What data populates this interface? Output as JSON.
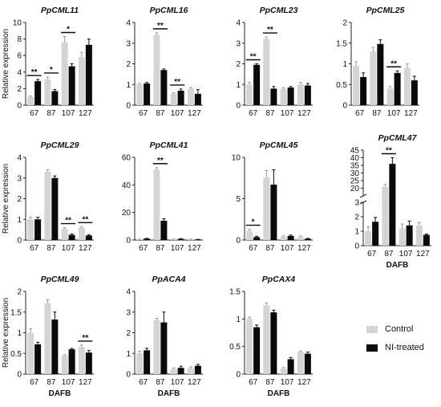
{
  "colors": {
    "control": "#d4d4d4",
    "treated": "#0a0a0a",
    "axis": "#222222",
    "text": "#111111"
  },
  "legend": {
    "control_label": "Control",
    "treated_label": "NI-treated"
  },
  "chart_data": [
    {
      "type": "bar",
      "title": "PpCML11",
      "ylabel": "Relative expression",
      "xlabel": "",
      "categories": [
        "67",
        "87",
        "107",
        "127"
      ],
      "ylim": [
        0,
        10
      ],
      "yticks": [
        0,
        2,
        4,
        6,
        8,
        10
      ],
      "series": [
        {
          "name": "Control",
          "values": [
            1.0,
            3.1,
            7.6,
            5.8
          ],
          "errors": [
            0.1,
            0.3,
            0.7,
            0.6
          ]
        },
        {
          "name": "NI-treated",
          "values": [
            2.9,
            1.7,
            4.7,
            7.3
          ],
          "errors": [
            0.2,
            0.2,
            0.3,
            0.7
          ]
        }
      ],
      "significance": [
        {
          "index": 0,
          "label": "**"
        },
        {
          "index": 1,
          "label": "*"
        },
        {
          "index": 2,
          "label": "*"
        }
      ]
    },
    {
      "type": "bar",
      "title": "PpCML16",
      "ylabel": "",
      "xlabel": "",
      "categories": [
        "67",
        "87",
        "107",
        "127"
      ],
      "ylim": [
        0,
        4
      ],
      "yticks": [
        0,
        1,
        2,
        3,
        4
      ],
      "series": [
        {
          "name": "Control",
          "values": [
            1.0,
            3.4,
            0.55,
            0.8
          ],
          "errors": [
            0.05,
            0.1,
            0.05,
            0.05
          ]
        },
        {
          "name": "NI-treated",
          "values": [
            1.05,
            1.7,
            0.7,
            0.55
          ],
          "errors": [
            0.05,
            0.05,
            0.08,
            0.2
          ]
        }
      ],
      "significance": [
        {
          "index": 1,
          "label": "**"
        },
        {
          "index": 2,
          "label": "**"
        }
      ]
    },
    {
      "type": "bar",
      "title": "PpCML23",
      "ylabel": "",
      "xlabel": "",
      "categories": [
        "67",
        "87",
        "107",
        "127"
      ],
      "ylim": [
        0,
        4
      ],
      "yticks": [
        0,
        1,
        2,
        3,
        4
      ],
      "series": [
        {
          "name": "Control",
          "values": [
            1.0,
            3.2,
            0.8,
            1.0
          ],
          "errors": [
            0.1,
            0.1,
            0.05,
            0.1
          ]
        },
        {
          "name": "NI-treated",
          "values": [
            1.95,
            0.8,
            0.85,
            0.95
          ],
          "errors": [
            0.05,
            0.1,
            0.05,
            0.1
          ]
        }
      ],
      "significance": [
        {
          "index": 0,
          "label": "**"
        },
        {
          "index": 1,
          "label": "**"
        }
      ]
    },
    {
      "type": "bar",
      "title": "PpCML25",
      "ylabel": "",
      "xlabel": "",
      "categories": [
        "67",
        "87",
        "107",
        "127"
      ],
      "ylim": [
        0,
        2.0
      ],
      "yticks": [
        0,
        0.5,
        1.0,
        1.5,
        2.0
      ],
      "series": [
        {
          "name": "Control",
          "values": [
            0.95,
            1.3,
            0.4,
            0.9
          ],
          "errors": [
            0.1,
            0.1,
            0.05,
            0.1
          ]
        },
        {
          "name": "NI-treated",
          "values": [
            0.68,
            1.48,
            0.78,
            0.6
          ],
          "errors": [
            0.1,
            0.1,
            0.05,
            0.1
          ]
        }
      ],
      "significance": [
        {
          "index": 2,
          "label": "**"
        }
      ]
    },
    {
      "type": "bar",
      "title": "PpCML29",
      "ylabel": "Relative expression",
      "xlabel": "",
      "categories": [
        "67",
        "87",
        "107",
        "127"
      ],
      "ylim": [
        0,
        4
      ],
      "yticks": [
        0,
        1,
        2,
        3,
        4
      ],
      "series": [
        {
          "name": "Control",
          "values": [
            1.0,
            3.3,
            0.55,
            0.6
          ],
          "errors": [
            0.1,
            0.1,
            0.05,
            0.05
          ]
        },
        {
          "name": "NI-treated",
          "values": [
            1.0,
            3.0,
            0.25,
            0.22
          ],
          "errors": [
            0.1,
            0.1,
            0.05,
            0.03
          ]
        }
      ],
      "significance": [
        {
          "index": 2,
          "label": "**"
        },
        {
          "index": 3,
          "label": "**"
        }
      ]
    },
    {
      "type": "bar",
      "title": "PpCML41",
      "ylabel": "",
      "xlabel": "",
      "categories": [
        "67",
        "87",
        "107",
        "127"
      ],
      "ylim": [
        0,
        60
      ],
      "yticks": [
        0,
        20,
        40,
        60
      ],
      "series": [
        {
          "name": "Control",
          "values": [
            0.5,
            51,
            0.5,
            0.5
          ],
          "errors": [
            0.2,
            1.5,
            0.2,
            0.2
          ]
        },
        {
          "name": "NI-treated",
          "values": [
            1.0,
            14,
            0.8,
            0.4
          ],
          "errors": [
            0.2,
            1.5,
            0.2,
            0.1
          ]
        }
      ],
      "significance": [
        {
          "index": 1,
          "label": "**"
        }
      ]
    },
    {
      "type": "bar",
      "title": "PpCML45",
      "ylabel": "",
      "xlabel": "",
      "categories": [
        "67",
        "87",
        "107",
        "127"
      ],
      "ylim": [
        0,
        10
      ],
      "yticks": [
        0,
        5,
        10
      ],
      "series": [
        {
          "name": "Control",
          "values": [
            1.1,
            7.6,
            0.4,
            0.4
          ],
          "errors": [
            0.2,
            0.8,
            0.1,
            0.1
          ]
        },
        {
          "name": "NI-treated",
          "values": [
            0.35,
            6.7,
            0.5,
            0.15
          ],
          "errors": [
            0.1,
            1.8,
            0.1,
            0.05
          ]
        }
      ],
      "significance": [
        {
          "index": 0,
          "label": "*"
        }
      ]
    },
    {
      "type": "bar",
      "title": "PpCML47",
      "ylabel": "",
      "xlabel": "DAFB",
      "categories": [
        "67",
        "87",
        "107",
        "127"
      ],
      "broken_axis": {
        "lower_ylim": [
          0,
          3
        ],
        "upper_ylim": [
          15,
          45
        ]
      },
      "yticks_lower": [
        0,
        1,
        2,
        3
      ],
      "yticks_upper": [
        20,
        25,
        30,
        35,
        40,
        45
      ],
      "series": [
        {
          "name": "Control",
          "values": [
            1.0,
            21,
            1.2,
            1.4
          ],
          "errors": [
            0.3,
            1.5,
            0.3,
            0.2
          ]
        },
        {
          "name": "NI-treated",
          "values": [
            1.65,
            36,
            1.4,
            0.75
          ],
          "errors": [
            0.3,
            4,
            0.3,
            0.05
          ]
        }
      ],
      "significance": [
        {
          "index": 1,
          "label": "**"
        }
      ]
    },
    {
      "type": "bar",
      "title": "PpCML49",
      "ylabel": "Relative expression",
      "xlabel": "DAFB",
      "categories": [
        "67",
        "87",
        "107",
        "127"
      ],
      "ylim": [
        0,
        2.0
      ],
      "yticks": [
        0,
        0.5,
        1.0,
        1.5,
        2.0
      ],
      "series": [
        {
          "name": "Control",
          "values": [
            1.0,
            1.72,
            0.45,
            0.65
          ],
          "errors": [
            0.1,
            0.08,
            0.02,
            0.05
          ]
        },
        {
          "name": "NI-treated",
          "values": [
            0.72,
            1.32,
            0.6,
            0.52
          ],
          "errors": [
            0.05,
            0.18,
            0.02,
            0.05
          ]
        }
      ],
      "significance": [
        {
          "index": 3,
          "label": "**"
        }
      ]
    },
    {
      "type": "bar",
      "title": "PpACA4",
      "ylabel": "",
      "xlabel": "DAFB",
      "categories": [
        "67",
        "87",
        "107",
        "127"
      ],
      "ylim": [
        0,
        4
      ],
      "yticks": [
        0,
        1,
        2,
        3,
        4
      ],
      "series": [
        {
          "name": "Control",
          "values": [
            1.0,
            2.6,
            0.25,
            0.3
          ],
          "errors": [
            0.1,
            0.1,
            0.05,
            0.05
          ]
        },
        {
          "name": "NI-treated",
          "values": [
            1.15,
            2.5,
            0.3,
            0.4
          ],
          "errors": [
            0.1,
            0.5,
            0.08,
            0.07
          ]
        }
      ],
      "significance": []
    },
    {
      "type": "bar",
      "title": "PpCAX4",
      "ylabel": "",
      "xlabel": "DAFB",
      "categories": [
        "67",
        "87",
        "107",
        "127"
      ],
      "ylim": [
        0,
        1.5
      ],
      "yticks": [
        0,
        0.5,
        1.0,
        1.5
      ],
      "series": [
        {
          "name": "Control",
          "values": [
            1.0,
            1.25,
            0.1,
            0.4
          ],
          "errors": [
            0.03,
            0.04,
            0.02,
            0.02
          ]
        },
        {
          "name": "NI-treated",
          "values": [
            0.85,
            1.12,
            0.27,
            0.37
          ],
          "errors": [
            0.04,
            0.04,
            0.03,
            0.03
          ]
        }
      ],
      "significance": []
    }
  ]
}
